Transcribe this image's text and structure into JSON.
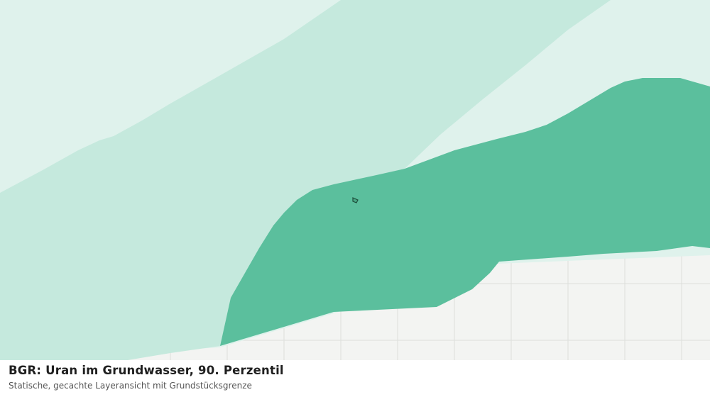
{
  "header": {
    "title": "BGR: Uran im Grundwasser, 90. Perzentil",
    "subtitle": "Statische, gecachte Layeransicht mit Grundstücksgrenze"
  }
}
